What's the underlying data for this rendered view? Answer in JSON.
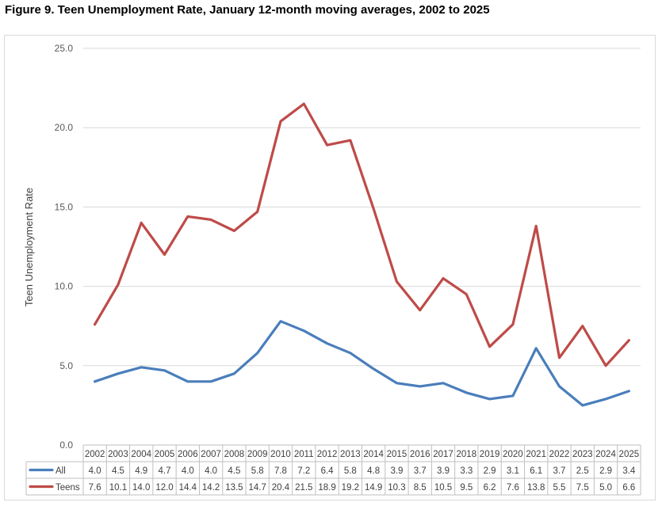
{
  "chart_data": {
    "type": "line",
    "title": "Figure 9. Teen Unemployment Rate, January 12-month moving averages, 2002 to 2025",
    "ylabel": "Teen Unemployment Rate",
    "xlabel": "",
    "ylim": [
      0,
      25
    ],
    "yticks": [
      "0.0",
      "5.0",
      "10.0",
      "15.0",
      "20.0",
      "25.0"
    ],
    "grid": true,
    "legend": "data-table",
    "categories": [
      "2002",
      "2003",
      "2004",
      "2005",
      "2006",
      "2007",
      "2008",
      "2009",
      "2010",
      "2011",
      "2012",
      "2013",
      "2014",
      "2015",
      "2016",
      "2017",
      "2018",
      "2019",
      "2020",
      "2021",
      "2022",
      "2023",
      "2024",
      "2025"
    ],
    "series": [
      {
        "name": "All",
        "color": "#4a7ebb",
        "values": [
          4.0,
          4.5,
          4.9,
          4.7,
          4.0,
          4.0,
          4.5,
          5.8,
          7.8,
          7.2,
          6.4,
          5.8,
          4.8,
          3.9,
          3.7,
          3.9,
          3.3,
          2.9,
          3.1,
          6.1,
          3.7,
          2.5,
          2.9,
          3.4
        ],
        "labels": [
          "4.0",
          "4.5",
          "4.9",
          "4.7",
          "4.0",
          "4.0",
          "4.5",
          "5.8",
          "7.8",
          "7.2",
          "6.4",
          "5.8",
          "4.8",
          "3.9",
          "3.7",
          "3.9",
          "3.3",
          "2.9",
          "3.1",
          "6.1",
          "3.7",
          "2.5",
          "2.9",
          "3.4"
        ]
      },
      {
        "name": "Teens",
        "color": "#be4b48",
        "values": [
          7.6,
          10.1,
          14.0,
          12.0,
          14.4,
          14.2,
          13.5,
          14.7,
          20.4,
          21.5,
          18.9,
          19.2,
          14.9,
          10.3,
          8.5,
          10.5,
          9.5,
          6.2,
          7.6,
          13.8,
          5.5,
          7.5,
          5.0,
          6.6
        ],
        "labels": [
          "7.6",
          "10.1",
          "14.0",
          "12.0",
          "14.4",
          "14.2",
          "13.5",
          "14.7",
          "20.4",
          "21.5",
          "18.9",
          "19.2",
          "14.9",
          "10.3",
          "8.5",
          "10.5",
          "9.5",
          "6.2",
          "7.6",
          "13.8",
          "5.5",
          "7.5",
          "5.0",
          "6.6"
        ]
      }
    ]
  }
}
